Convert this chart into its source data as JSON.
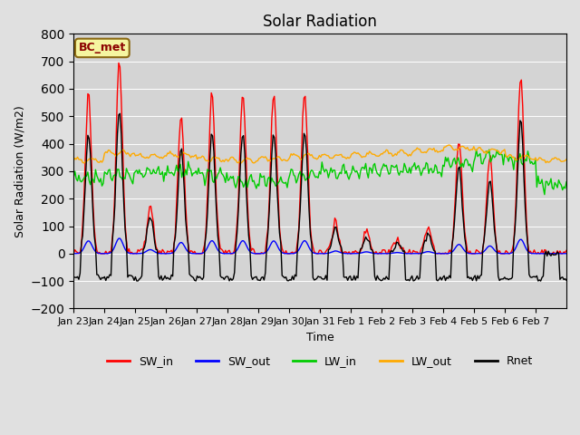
{
  "title": "Solar Radiation",
  "xlabel": "Time",
  "ylabel": "Solar Radiation (W/m2)",
  "ylim": [
    -200,
    800
  ],
  "yticks": [
    -200,
    -100,
    0,
    100,
    200,
    300,
    400,
    500,
    600,
    700,
    800
  ],
  "fig_facecolor": "#e0e0e0",
  "ax_facecolor": "#d4d4d4",
  "legend_label": "BC_met",
  "series_colors": {
    "SW_in": "#ff0000",
    "SW_out": "#0000ff",
    "LW_in": "#00cc00",
    "LW_out": "#ffaa00",
    "Rnet": "#000000"
  },
  "n_points": 384,
  "n_days": 16,
  "date_labels": [
    "Jan 23",
    "Jan 24",
    "Jan 25",
    "Jan 26",
    "Jan 27",
    "Jan 28",
    "Jan 29",
    "Jan 30",
    "Jan 31",
    "Feb 1",
    "Feb 2",
    "Feb 3",
    "Feb 4",
    "Feb 5",
    "Feb 6",
    "Feb 7"
  ],
  "SW_in_peaks": [
    580,
    700,
    180,
    510,
    590,
    590,
    580,
    590,
    120,
    80,
    50,
    90,
    420,
    350,
    650,
    0
  ],
  "LW_in_bases": [
    270,
    285,
    295,
    300,
    285,
    260,
    260,
    285,
    300,
    305,
    310,
    310,
    330,
    355,
    340,
    250
  ],
  "LW_out_bases": [
    340,
    365,
    355,
    360,
    345,
    340,
    345,
    355,
    355,
    360,
    365,
    375,
    385,
    375,
    350,
    340
  ]
}
